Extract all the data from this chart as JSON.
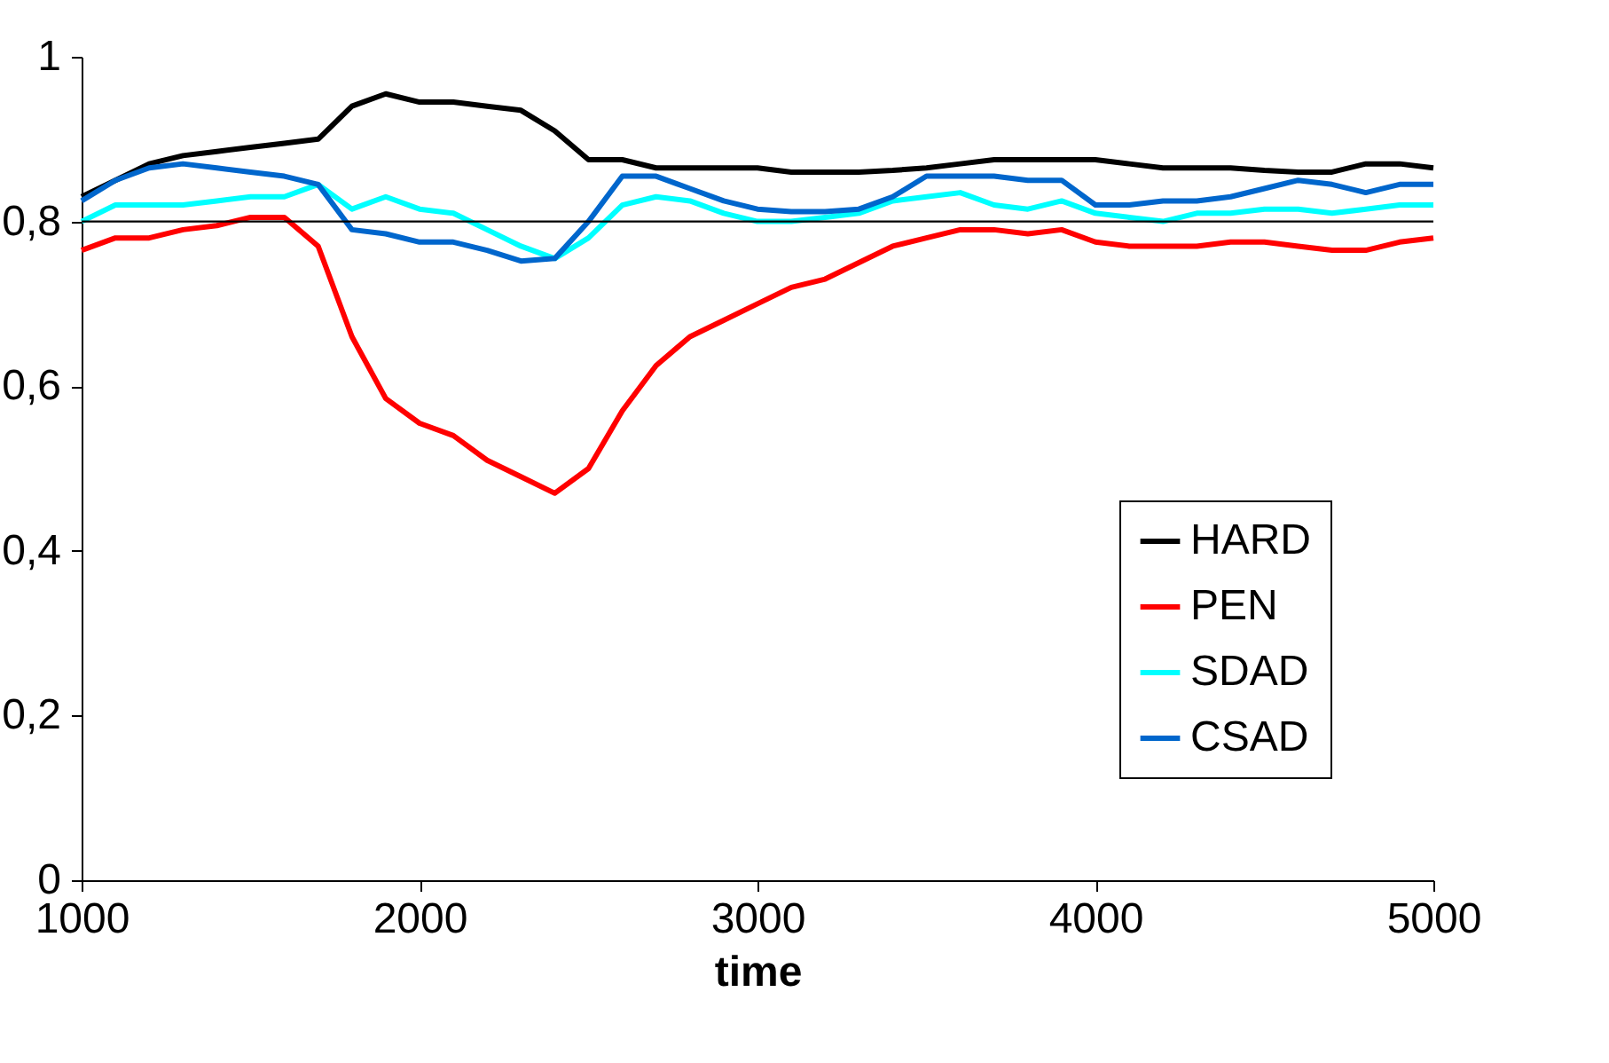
{
  "chart_data": {
    "type": "line",
    "xlabel": "time",
    "x": [
      1000,
      1100,
      1200,
      1300,
      1400,
      1500,
      1600,
      1700,
      1800,
      1900,
      2000,
      2100,
      2200,
      2300,
      2400,
      2500,
      2600,
      2700,
      2800,
      2900,
      3000,
      3100,
      3200,
      3300,
      3400,
      3500,
      3600,
      3700,
      3800,
      3900,
      4000,
      4100,
      4200,
      4300,
      4400,
      4500,
      4600,
      4700,
      4800,
      4900,
      5000
    ],
    "series": [
      {
        "name": "HARD",
        "color": "#000000",
        "values": [
          0.83,
          0.85,
          0.87,
          0.88,
          0.885,
          0.89,
          0.895,
          0.9,
          0.94,
          0.955,
          0.945,
          0.945,
          0.94,
          0.935,
          0.91,
          0.875,
          0.875,
          0.865,
          0.865,
          0.865,
          0.865,
          0.86,
          0.86,
          0.86,
          0.862,
          0.865,
          0.87,
          0.875,
          0.875,
          0.875,
          0.875,
          0.87,
          0.865,
          0.865,
          0.865,
          0.862,
          0.86,
          0.86,
          0.87,
          0.87,
          0.865
        ]
      },
      {
        "name": "PEN",
        "color": "#ff0000",
        "values": [
          0.765,
          0.78,
          0.78,
          0.79,
          0.795,
          0.805,
          0.805,
          0.77,
          0.66,
          0.585,
          0.555,
          0.54,
          0.51,
          0.49,
          0.47,
          0.5,
          0.57,
          0.625,
          0.66,
          0.68,
          0.7,
          0.72,
          0.73,
          0.75,
          0.77,
          0.78,
          0.79,
          0.79,
          0.785,
          0.79,
          0.775,
          0.77,
          0.77,
          0.77,
          0.775,
          0.775,
          0.77,
          0.765,
          0.765,
          0.775,
          0.78
        ]
      },
      {
        "name": "SDAD",
        "color": "#00ffff",
        "values": [
          0.8,
          0.82,
          0.82,
          0.82,
          0.825,
          0.83,
          0.83,
          0.845,
          0.815,
          0.83,
          0.815,
          0.81,
          0.79,
          0.77,
          0.755,
          0.78,
          0.82,
          0.83,
          0.825,
          0.81,
          0.8,
          0.8,
          0.805,
          0.81,
          0.825,
          0.83,
          0.835,
          0.82,
          0.815,
          0.825,
          0.81,
          0.805,
          0.8,
          0.81,
          0.81,
          0.815,
          0.815,
          0.81,
          0.815,
          0.82,
          0.82
        ]
      },
      {
        "name": "CSAD",
        "color": "#0066cc",
        "values": [
          0.825,
          0.85,
          0.865,
          0.87,
          0.865,
          0.86,
          0.855,
          0.845,
          0.79,
          0.785,
          0.775,
          0.775,
          0.765,
          0.752,
          0.755,
          0.8,
          0.855,
          0.855,
          0.84,
          0.825,
          0.815,
          0.812,
          0.812,
          0.815,
          0.83,
          0.855,
          0.855,
          0.855,
          0.85,
          0.85,
          0.82,
          0.82,
          0.825,
          0.825,
          0.83,
          0.84,
          0.85,
          0.845,
          0.835,
          0.845,
          0.845
        ]
      }
    ],
    "xlim": [
      1000,
      5000
    ],
    "xticks": [
      1000,
      2000,
      3000,
      4000,
      5000
    ],
    "ylim": [
      0,
      1
    ],
    "yticks": [
      0,
      {
        "value": 0.2,
        "label": "0,2"
      },
      {
        "value": 0.4,
        "label": "0,4"
      },
      {
        "value": 0.6,
        "label": "0,6"
      },
      {
        "value": 0.8,
        "label": "0,8"
      },
      1
    ],
    "ref_lines": [
      {
        "axis": "y",
        "value": 0.8,
        "color": "#000000"
      }
    ],
    "legend": "bottom right"
  }
}
